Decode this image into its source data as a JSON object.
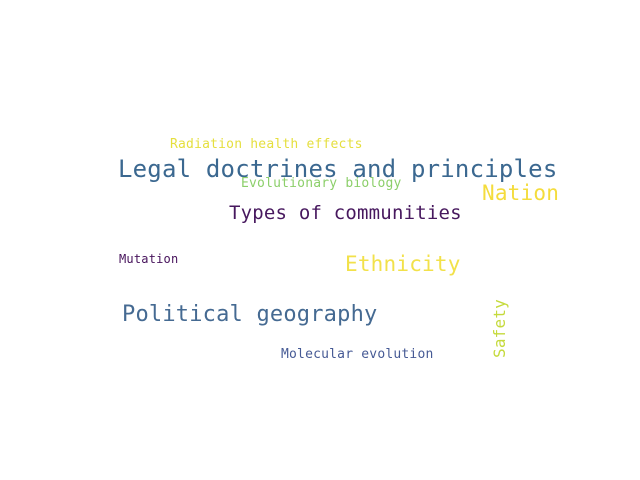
{
  "words": [
    {
      "id": "radiation",
      "text": "Radiation health effects",
      "color": "#e5df3e"
    },
    {
      "id": "legal",
      "text": "Legal doctrines and principles",
      "color": "#3b6890"
    },
    {
      "id": "evolutionary",
      "text": "Evolutionary biology",
      "color": "#8ccf6a"
    },
    {
      "id": "nation",
      "text": "Nation",
      "color": "#f4dc3c"
    },
    {
      "id": "types",
      "text": "Types of communities",
      "color": "#47185e"
    },
    {
      "id": "ethnicity",
      "text": "Ethnicity",
      "color": "#f2e14a"
    },
    {
      "id": "mutation",
      "text": "Mutation",
      "color": "#46125b"
    },
    {
      "id": "political",
      "text": "Political geography",
      "color": "#456a92"
    },
    {
      "id": "molecular",
      "text": "Molecular evolution",
      "color": "#465a95"
    },
    {
      "id": "safety",
      "text": "Safety",
      "color": "#c5da3c"
    }
  ]
}
